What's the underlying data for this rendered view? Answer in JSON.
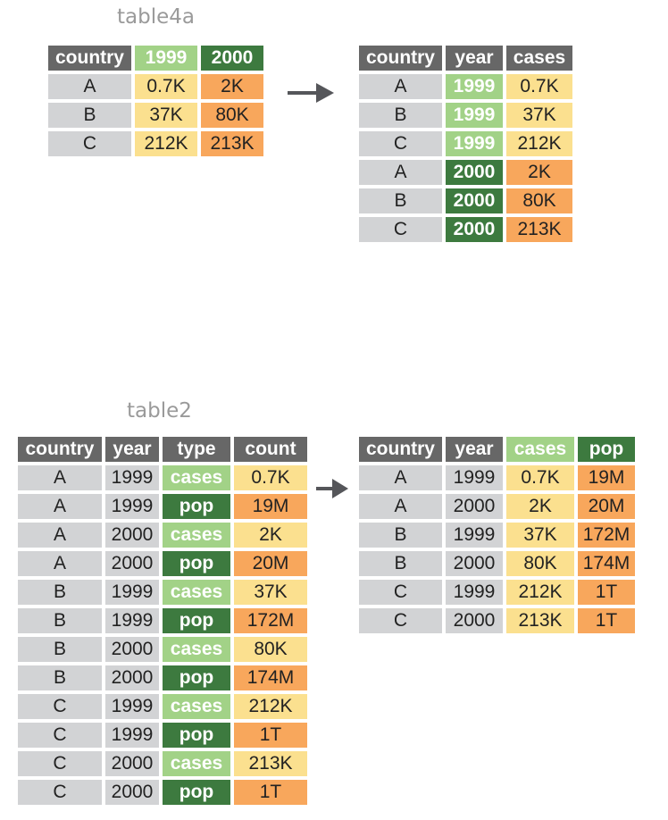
{
  "colors": {
    "header": "#676767",
    "key": "#d2d3d5",
    "year_1999_or_cases": "#a2d287",
    "year_2000_or_pop": "#3d7a3f",
    "cases_values": "#fbe08f",
    "pop_values": "#f8a75c",
    "arrow": "#55565a"
  },
  "top": {
    "caption": "table4a",
    "left": {
      "headers": [
        "country",
        "1999",
        "2000"
      ],
      "rows": [
        [
          "A",
          "0.7K",
          "2K"
        ],
        [
          "B",
          "37K",
          "80K"
        ],
        [
          "C",
          "212K",
          "213K"
        ]
      ]
    },
    "right": {
      "headers": [
        "country",
        "year",
        "cases"
      ],
      "rows": [
        [
          "A",
          "1999",
          "0.7K"
        ],
        [
          "B",
          "1999",
          "37K"
        ],
        [
          "C",
          "1999",
          "212K"
        ],
        [
          "A",
          "2000",
          "2K"
        ],
        [
          "B",
          "2000",
          "80K"
        ],
        [
          "C",
          "2000",
          "213K"
        ]
      ]
    }
  },
  "bottom": {
    "caption": "table2",
    "left": {
      "headers": [
        "country",
        "year",
        "type",
        "count"
      ],
      "rows": [
        [
          "A",
          "1999",
          "cases",
          "0.7K"
        ],
        [
          "A",
          "1999",
          "pop",
          "19M"
        ],
        [
          "A",
          "2000",
          "cases",
          "2K"
        ],
        [
          "A",
          "2000",
          "pop",
          "20M"
        ],
        [
          "B",
          "1999",
          "cases",
          "37K"
        ],
        [
          "B",
          "1999",
          "pop",
          "172M"
        ],
        [
          "B",
          "2000",
          "cases",
          "80K"
        ],
        [
          "B",
          "2000",
          "pop",
          "174M"
        ],
        [
          "C",
          "1999",
          "cases",
          "212K"
        ],
        [
          "C",
          "1999",
          "pop",
          "1T"
        ],
        [
          "C",
          "2000",
          "cases",
          "213K"
        ],
        [
          "C",
          "2000",
          "pop",
          "1T"
        ]
      ]
    },
    "right": {
      "headers": [
        "country",
        "year",
        "cases",
        "pop"
      ],
      "rows": [
        [
          "A",
          "1999",
          "0.7K",
          "19M"
        ],
        [
          "A",
          "2000",
          "2K",
          "20M"
        ],
        [
          "B",
          "1999",
          "37K",
          "172M"
        ],
        [
          "B",
          "2000",
          "80K",
          "174M"
        ],
        [
          "C",
          "1999",
          "212K",
          "1T"
        ],
        [
          "C",
          "2000",
          "213K",
          "1T"
        ]
      ]
    }
  }
}
